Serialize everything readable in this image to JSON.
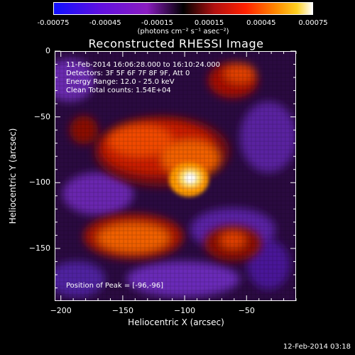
{
  "colorbar": {
    "tick_labels": [
      "-0.00075",
      "-0.00045",
      "-0.00015",
      "0.00015",
      "0.00045",
      "0.00075"
    ],
    "units": "(photons cm⁻² s⁻¹ asec⁻²)",
    "colormap": "rainbow-black-to-white",
    "range": [
      -0.00075,
      0.00075
    ]
  },
  "chart_data": {
    "type": "heatmap",
    "title": "Reconstructed RHESSI Image",
    "xlabel": "Heliocentric X (arcsec)",
    "ylabel": "Heliocentric Y (arcsec)",
    "xlim": [
      -205,
      -10
    ],
    "ylim": [
      -190,
      0
    ],
    "x_ticks": [
      -200,
      -150,
      -100,
      -50
    ],
    "y_ticks": [
      0,
      -50,
      -100,
      -150
    ],
    "x_tick_labels": [
      "−200",
      "−150",
      "−100",
      "−50"
    ],
    "y_tick_labels": [
      "0",
      "−50",
      "−100",
      "−150"
    ],
    "peak_position": [
      -96,
      -96
    ],
    "annotations": {
      "time_range": "11-Feb-2014 16:06:28.000 to 16:10:24.000",
      "detectors": "Detectors: 3F 5F 6F 7F 8F 9F, Att 0",
      "energy": "Energy Range: 12.0 - 25.0 keV",
      "method": "Clean     Total counts: 1.54E+04",
      "peak": "Position of Peak = [-96,-96]"
    }
  },
  "footer": {
    "timestamp": "12-Feb-2014 03:18"
  }
}
